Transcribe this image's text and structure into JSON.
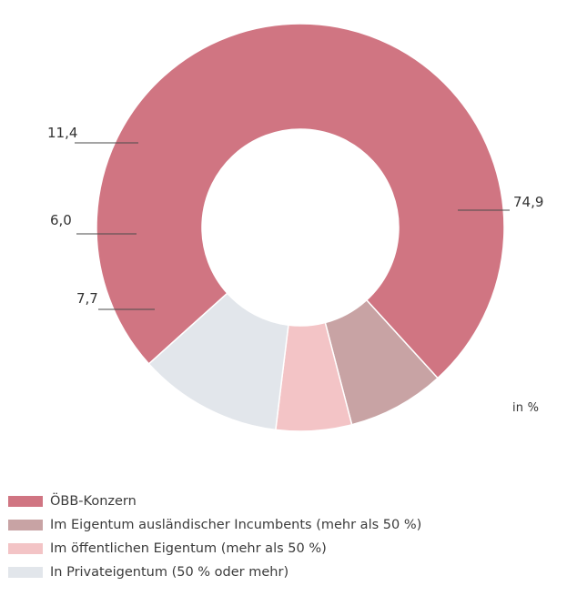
{
  "chart_data": {
    "type": "pie",
    "donut": true,
    "unit_label": "in %",
    "slices": [
      {
        "name": "ÖBB-Konzern",
        "value": 74.9,
        "label": "74,9",
        "color": "#d07582"
      },
      {
        "name": "Im Eigentum ausländischer Incumbents (mehr als 50 %)",
        "value": 7.7,
        "label": "7,7",
        "color": "#c8a3a4"
      },
      {
        "name": "Im öffentlichen Eigentum (mehr als 50 %)",
        "value": 6.0,
        "label": "6,0",
        "color": "#f3c4c6"
      },
      {
        "name": "In Privateigentum (50 % oder mehr)",
        "value": 11.4,
        "label": "11,4",
        "color": "#e2e6eb"
      }
    ],
    "legend_position": "bottom-left"
  }
}
